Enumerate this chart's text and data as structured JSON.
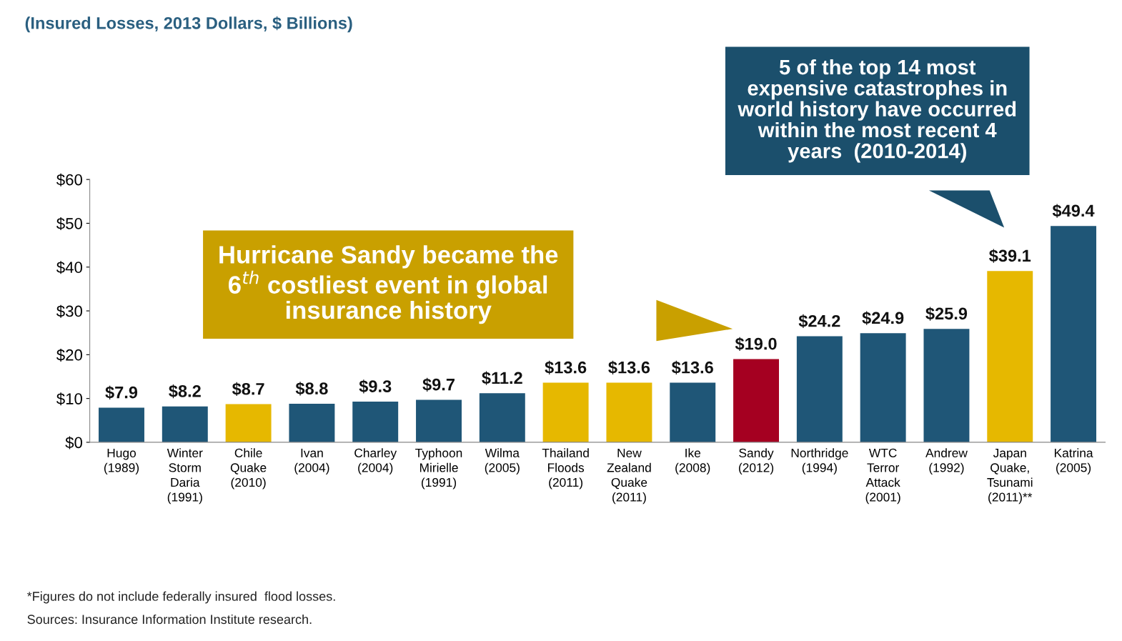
{
  "chart_data": {
    "type": "bar",
    "title": "(Insured Losses, 2013 Dollars, $ Billions)",
    "categories": [
      "Hugo\n(1989)",
      "Winter\nStorm\nDaria\n(1991)",
      "Chile\nQuake\n(2010)",
      "Ivan\n(2004)",
      "Charley\n(2004)",
      "Typhoon\nMirielle\n(1991)",
      "Wilma\n(2005)",
      "Thailand\nFloods\n(2011)",
      "New\nZealand\nQuake\n(2011)",
      "Ike\n(2008)",
      "Sandy\n(2012)",
      "Northridge\n(1994)",
      "WTC\nTerror\nAttack\n(2001)",
      "Andrew\n(1992)",
      "Japan\nQuake,\nTsunami\n(2011)**",
      "Katrina\n(2005)"
    ],
    "values": [
      7.9,
      8.2,
      8.7,
      8.8,
      9.3,
      9.7,
      11.2,
      13.6,
      13.6,
      13.6,
      19.0,
      24.2,
      24.9,
      25.9,
      39.1,
      49.4
    ],
    "value_labels": [
      "$7.9",
      "$8.2",
      "$8.7",
      "$8.8",
      "$9.3",
      "$9.7",
      "$11.2",
      "$13.6",
      "$13.6",
      "$13.6",
      "$19.0",
      "$24.2",
      "$24.9",
      "$25.9",
      "$39.1",
      "$49.4"
    ],
    "colors": [
      "#1f5677",
      "#1f5677",
      "#e6b800",
      "#1f5677",
      "#1f5677",
      "#1f5677",
      "#1f5677",
      "#e6b800",
      "#e6b800",
      "#1f5677",
      "#a50021",
      "#1f5677",
      "#1f5677",
      "#1f5677",
      "#e6b800",
      "#1f5677"
    ],
    "ylim": [
      0,
      60
    ],
    "yticks": [
      {
        "value": 0,
        "label": "$0"
      },
      {
        "value": 10,
        "label": "$10"
      },
      {
        "value": 20,
        "label": "$20"
      },
      {
        "value": 30,
        "label": "$30"
      },
      {
        "value": 40,
        "label": "$40"
      },
      {
        "value": 50,
        "label": "$50"
      },
      {
        "value": 60,
        "label": "$60"
      }
    ],
    "grid": false,
    "legend": false,
    "annotations": [
      "Hurricane Sandy became the\n6$^{th}$ costliest event in global\ninsurance history",
      "5 of the top 14 most\nexpensive catastrophes in\nworld history have occurred\nwithin the most recent 4\nyears  (2010-2014)",
      "*Figures do not include federally insured  flood losses.",
      "Sources: Insurance Information Institute research."
    ]
  }
}
